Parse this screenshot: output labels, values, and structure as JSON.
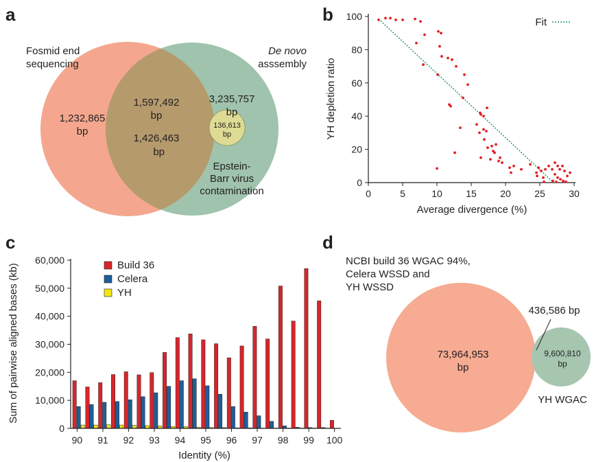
{
  "panels": {
    "a": {
      "label": "a",
      "left_set": {
        "line1": "Fosmid end",
        "line2": "sequencing",
        "only": "1,232,865",
        "only_unit": "bp",
        "color": "#f4a78e"
      },
      "right_set": {
        "line1": "De novo",
        "line2": "asssembly",
        "only": "3,235,757",
        "only_unit": "bp",
        "color": "#9fc3ac"
      },
      "overlap": {
        "value1": "1,597,492",
        "unit1": "bp",
        "value2": "1,426,463",
        "overlap_color": "#b59a6c"
      },
      "ebv": {
        "value": "136,613",
        "unit": "bp",
        "line1": "Epstein-",
        "line2": "Barr virus",
        "line3": "contamination",
        "color": "#dedb95"
      }
    },
    "b": {
      "label": "b"
    },
    "c": {
      "label": "c"
    },
    "d": {
      "label": "d",
      "title_line1": "NCBI build 36 WGAC 94%,",
      "title_line2": "Celera WSSD and",
      "title_line3": "YH WSSD",
      "big_value": "73,964,953",
      "big_unit": "bp",
      "small_value": "9,600,810",
      "small_unit": "bp",
      "overlap_value": "436,586 bp",
      "small_label": "YH WGAC",
      "big_color": "#f6ab92",
      "small_color": "#a6c6b0"
    }
  },
  "chart_data": [
    {
      "type": "scatter",
      "panel": "b",
      "xlabel": "Average divergence (%)",
      "ylabel": "YH depletion ratio",
      "xlim": [
        0,
        30
      ],
      "ylim": [
        0,
        100
      ],
      "xticks": [
        0,
        5,
        10,
        15,
        20,
        25,
        30
      ],
      "yticks": [
        0,
        20,
        40,
        60,
        80,
        100
      ],
      "grid": false,
      "legend": {
        "label": "Fit",
        "position": "top-right"
      },
      "point_color": "#e31e24",
      "fit_color": "#1a9850",
      "fit": {
        "x": [
          1.5,
          27
        ],
        "y": [
          98.5,
          0
        ]
      },
      "points": [
        [
          1.5,
          98
        ],
        [
          2.5,
          99
        ],
        [
          3.2,
          99
        ],
        [
          4,
          98
        ],
        [
          5,
          98
        ],
        [
          6.8,
          98.5
        ],
        [
          7.6,
          97
        ],
        [
          7,
          84
        ],
        [
          8.2,
          89
        ],
        [
          8,
          71
        ],
        [
          10.2,
          91
        ],
        [
          10.6,
          90
        ],
        [
          10.4,
          82
        ],
        [
          10.7,
          76
        ],
        [
          11.6,
          75
        ],
        [
          12.2,
          74
        ],
        [
          10.1,
          65
        ],
        [
          12.8,
          70
        ],
        [
          14,
          65
        ],
        [
          14.5,
          59
        ],
        [
          13.8,
          51
        ],
        [
          11.8,
          47
        ],
        [
          12,
          46
        ],
        [
          16.3,
          42
        ],
        [
          16.4,
          41
        ],
        [
          16.8,
          40
        ],
        [
          17.3,
          45
        ],
        [
          15.8,
          35
        ],
        [
          16.2,
          30
        ],
        [
          16.8,
          32
        ],
        [
          17.2,
          31
        ],
        [
          13.4,
          33
        ],
        [
          16.9,
          26
        ],
        [
          18,
          22
        ],
        [
          18.2,
          19
        ],
        [
          18.4,
          18
        ],
        [
          18.6,
          23
        ],
        [
          17.4,
          21
        ],
        [
          17.8,
          14
        ],
        [
          19.2,
          15
        ],
        [
          19,
          13
        ],
        [
          19.5,
          12
        ],
        [
          16.4,
          15
        ],
        [
          12.6,
          18
        ],
        [
          10,
          8.5
        ],
        [
          20.6,
          9
        ],
        [
          21.2,
          10
        ],
        [
          22.3,
          8
        ],
        [
          20.8,
          6
        ],
        [
          23.6,
          11
        ],
        [
          24.8,
          9
        ],
        [
          25.2,
          7
        ],
        [
          24.5,
          6
        ],
        [
          25.8,
          8
        ],
        [
          24.6,
          4
        ],
        [
          25.5,
          3
        ],
        [
          26.3,
          10
        ],
        [
          26.8,
          8
        ],
        [
          27.2,
          12
        ],
        [
          27.6,
          10
        ],
        [
          27.9,
          8
        ],
        [
          28.3,
          10
        ],
        [
          28.6,
          7
        ],
        [
          27.2,
          5
        ],
        [
          27.6,
          3
        ],
        [
          28.0,
          2
        ],
        [
          28.4,
          1
        ],
        [
          29,
          4
        ],
        [
          29.4,
          6
        ],
        [
          26.9,
          1
        ],
        [
          25.6,
          0.5
        ],
        [
          28.8,
          0.5
        ],
        [
          27.4,
          0.4
        ]
      ]
    },
    {
      "type": "bar",
      "panel": "c",
      "xlabel": "Identity (%)",
      "ylabel": "Sum of pairwise aligned bases (kb)",
      "ylim": [
        0,
        60000
      ],
      "yticks": [
        "0",
        "10,000",
        "20,000",
        "30,000",
        "40,000",
        "50,000",
        "60,000"
      ],
      "ytick_values": [
        0,
        10000,
        20000,
        30000,
        40000,
        50000,
        60000
      ],
      "xticks": [
        "90",
        "91",
        "92",
        "93",
        "94",
        "95",
        "96",
        "97",
        "98",
        "99",
        "100"
      ],
      "legend_position": "top-left",
      "categories": [
        "90",
        "90.5",
        "91",
        "91.5",
        "92",
        "92.5",
        "93",
        "93.5",
        "94",
        "94.5",
        "95",
        "95.5",
        "96",
        "96.5",
        "97",
        "97.5",
        "98",
        "98.5",
        "99",
        "99.5",
        "100"
      ],
      "series": [
        {
          "name": "Build 36",
          "color": "#d7262b",
          "values": [
            17000,
            14800,
            16300,
            19200,
            20200,
            19100,
            19900,
            27100,
            32400,
            33700,
            31600,
            30200,
            25200,
            29400,
            36400,
            31900,
            50800,
            38300,
            57000,
            45500,
            2900
          ]
        },
        {
          "name": "Celera",
          "color": "#1d5f9a",
          "values": [
            7800,
            8500,
            9300,
            9600,
            10200,
            11300,
            12700,
            15000,
            17000,
            17700,
            15200,
            12200,
            7800,
            5800,
            4500,
            2500,
            900,
            400,
            300,
            300,
            0
          ]
        },
        {
          "name": "YH",
          "color": "#f2e515",
          "values": [
            1200,
            1200,
            1300,
            1200,
            1100,
            1000,
            900,
            700,
            600,
            400,
            300,
            300,
            200,
            200,
            100,
            100,
            100,
            100,
            100,
            100,
            0
          ]
        }
      ]
    }
  ]
}
